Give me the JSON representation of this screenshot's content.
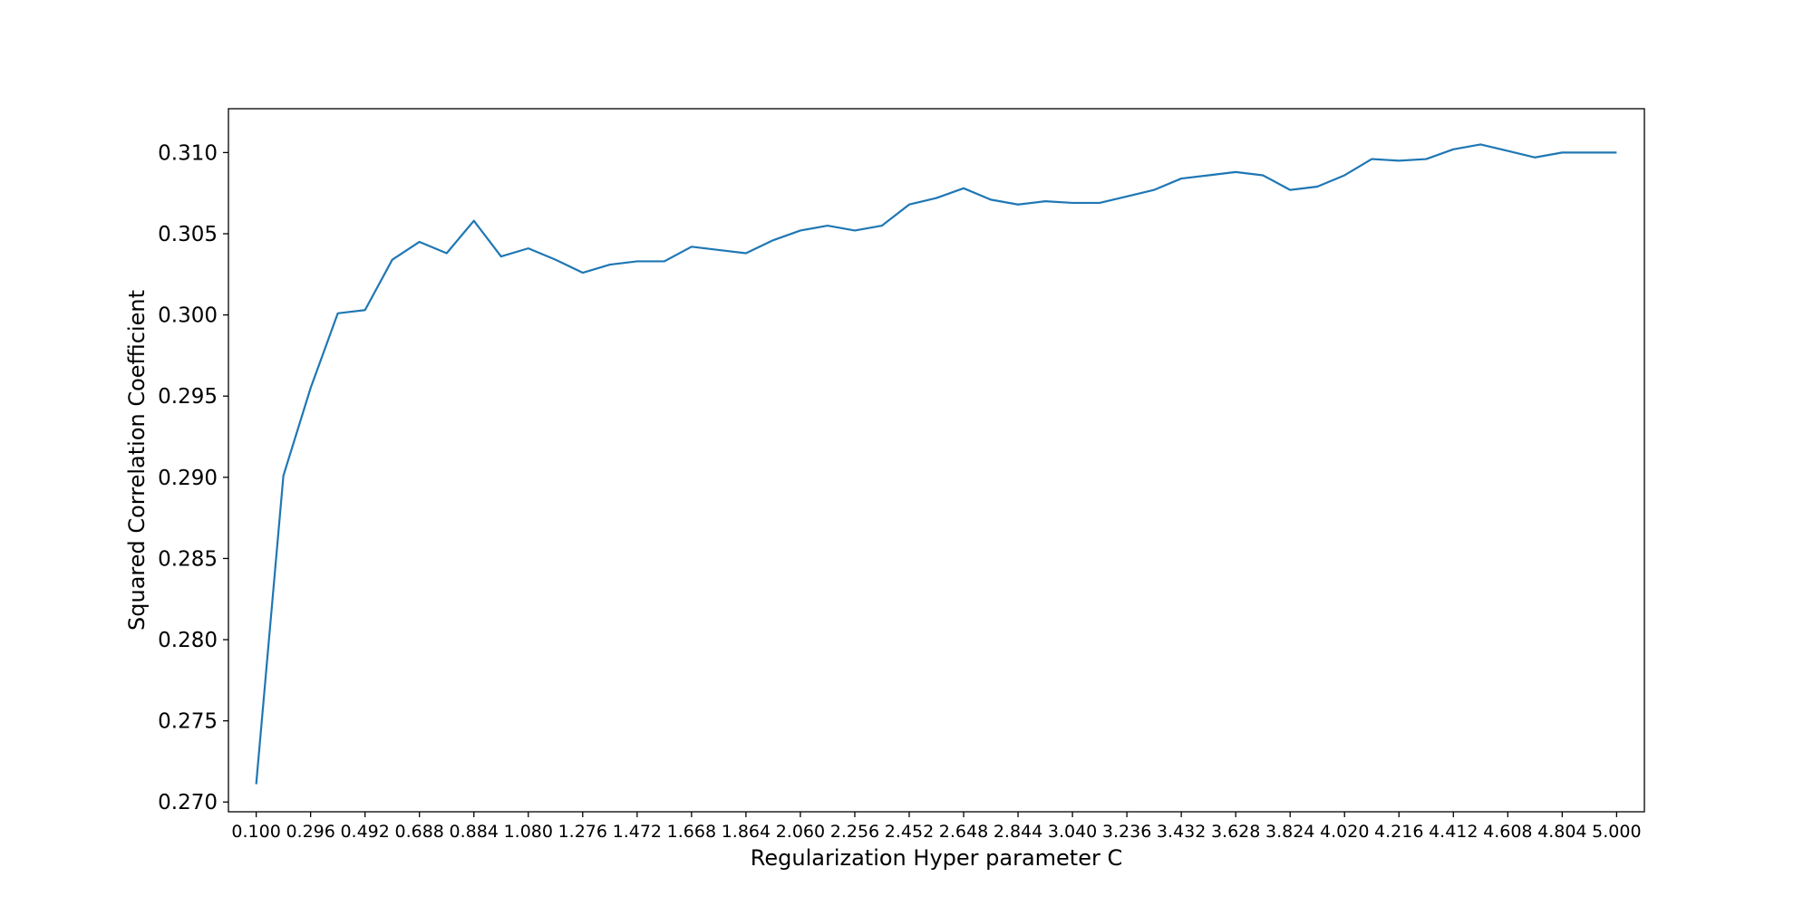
{
  "chart_data": {
    "type": "line",
    "title": "",
    "xlabel": "Regularization Hyper parameter C",
    "ylabel": "Squared Correlation Coefficient",
    "xlim": [
      0.0,
      5.1
    ],
    "ylim": [
      0.2694,
      0.3127
    ],
    "grid": false,
    "line_color": "#1f77b4",
    "x_ticks": [
      0.1,
      0.296,
      0.492,
      0.688,
      0.884,
      1.08,
      1.276,
      1.472,
      1.668,
      1.864,
      2.06,
      2.256,
      2.452,
      2.648,
      2.844,
      3.04,
      3.236,
      3.432,
      3.628,
      3.824,
      4.02,
      4.216,
      4.412,
      4.608,
      4.804,
      5.0
    ],
    "x_tick_labels": [
      "0.100",
      "0.296",
      "0.492",
      "0.688",
      "0.884",
      "1.080",
      "1.276",
      "1.472",
      "1.668",
      "1.864",
      "2.060",
      "2.256",
      "2.452",
      "2.648",
      "2.844",
      "3.040",
      "3.236",
      "3.432",
      "3.628",
      "3.824",
      "4.020",
      "4.216",
      "4.412",
      "4.608",
      "4.804",
      "5.000"
    ],
    "y_ticks": [
      0.27,
      0.275,
      0.28,
      0.285,
      0.29,
      0.295,
      0.3,
      0.305,
      0.31
    ],
    "y_tick_labels": [
      "0.270",
      "0.275",
      "0.280",
      "0.285",
      "0.290",
      "0.295",
      "0.300",
      "0.305",
      "0.310"
    ],
    "series": [
      {
        "x": [
          0.1,
          0.198,
          0.296,
          0.394,
          0.492,
          0.59,
          0.688,
          0.786,
          0.884,
          0.982,
          1.08,
          1.178,
          1.276,
          1.374,
          1.472,
          1.57,
          1.668,
          1.766,
          1.864,
          1.962,
          2.06,
          2.158,
          2.256,
          2.354,
          2.452,
          2.55,
          2.648,
          2.746,
          2.844,
          2.942,
          3.04,
          3.138,
          3.236,
          3.334,
          3.432,
          3.53,
          3.628,
          3.726,
          3.824,
          3.922,
          4.02,
          4.118,
          4.216,
          4.314,
          4.412,
          4.51,
          4.608,
          4.706,
          4.804,
          4.902,
          5.0
        ],
        "values": [
          0.2711,
          0.2901,
          0.2955,
          0.3001,
          0.3003,
          0.3034,
          0.3045,
          0.3038,
          0.3058,
          0.3036,
          0.3041,
          0.3034,
          0.3026,
          0.3031,
          0.3033,
          0.3033,
          0.3042,
          0.304,
          0.3038,
          0.3046,
          0.3052,
          0.3055,
          0.3052,
          0.3055,
          0.3068,
          0.3072,
          0.3078,
          0.3071,
          0.3068,
          0.307,
          0.3069,
          0.3069,
          0.3073,
          0.3077,
          0.3084,
          0.3086,
          0.3088,
          0.3086,
          0.3077,
          0.3079,
          0.3086,
          0.3096,
          0.3095,
          0.3096,
          0.3102,
          0.3105,
          0.3101,
          0.3097,
          0.31,
          0.31,
          0.31
        ]
      }
    ]
  }
}
